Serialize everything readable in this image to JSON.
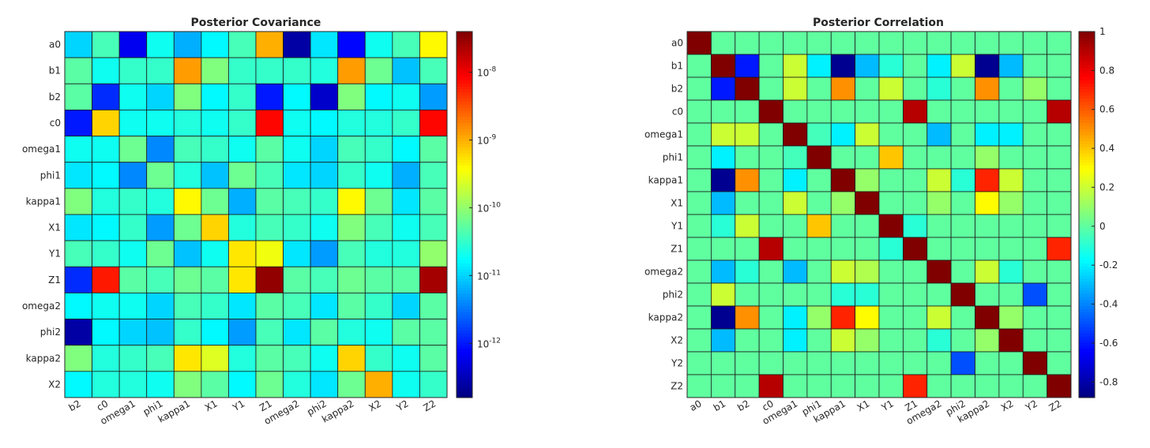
{
  "chart_data": [
    {
      "type": "heatmap",
      "title": "Posterior Covariance",
      "scale": "log10",
      "row_labels": [
        "a0",
        "b1",
        "b2",
        "c0",
        "omega1",
        "phi1",
        "kappa1",
        "X1",
        "Y1",
        "Z1",
        "omega2",
        "phi2",
        "kappa2",
        "X2"
      ],
      "col_labels": [
        "b2",
        "c0",
        "omega1",
        "phi1",
        "kappa1",
        "X1",
        "Y1",
        "Z1",
        "omega2",
        "phi2",
        "kappa2",
        "X2",
        "Y2",
        "Z2"
      ],
      "log10_values": [
        [
          -11.0,
          -10.4,
          -12.2,
          -10.7,
          -11.2,
          -10.8,
          -10.4,
          -9.0,
          -12.6,
          -10.9,
          -12.1,
          -10.7,
          -10.4,
          -9.4
        ],
        [
          -10.3,
          -10.7,
          -10.5,
          -10.5,
          -8.9,
          -10.1,
          -10.5,
          -10.5,
          -10.5,
          -10.6,
          -8.9,
          -10.2,
          -11.1,
          -10.4
        ],
        [
          -10.3,
          -11.9,
          -10.7,
          -11.0,
          -10.1,
          -10.8,
          -10.5,
          -12.0,
          -10.8,
          -12.4,
          -10.1,
          -10.8,
          -10.7,
          -11.3
        ],
        [
          -12.0,
          -9.2,
          -10.7,
          -10.7,
          -10.6,
          -10.7,
          -10.5,
          -8.1,
          -10.7,
          -10.8,
          -10.6,
          -10.6,
          -10.5,
          -8.1
        ],
        [
          -10.7,
          -10.7,
          -10.2,
          -11.4,
          -10.4,
          -10.5,
          -10.7,
          -10.3,
          -10.7,
          -11.0,
          -10.4,
          -10.5,
          -10.8,
          -10.3
        ],
        [
          -10.9,
          -10.8,
          -11.4,
          -10.2,
          -10.6,
          -11.1,
          -10.2,
          -10.4,
          -10.9,
          -11.0,
          -10.5,
          -10.7,
          -11.2,
          -10.4
        ],
        [
          -10.1,
          -10.6,
          -10.5,
          -10.6,
          -9.4,
          -10.2,
          -11.2,
          -10.3,
          -10.4,
          -10.5,
          -9.4,
          -10.2,
          -10.9,
          -10.3
        ],
        [
          -10.9,
          -10.8,
          -10.5,
          -11.3,
          -10.2,
          -9.2,
          -10.6,
          -10.4,
          -10.5,
          -10.7,
          -10.1,
          -10.4,
          -10.7,
          -10.4
        ],
        [
          -10.4,
          -10.5,
          -10.7,
          -10.2,
          -11.1,
          -10.7,
          -9.3,
          -9.5,
          -10.9,
          -11.3,
          -10.4,
          -10.6,
          -10.6,
          -10.0
        ],
        [
          -11.9,
          -8.2,
          -10.3,
          -10.4,
          -10.2,
          -10.3,
          -9.3,
          -7.5,
          -10.3,
          -10.4,
          -10.2,
          -10.3,
          -10.3,
          -7.6
        ],
        [
          -10.8,
          -10.7,
          -10.7,
          -11.0,
          -10.4,
          -10.5,
          -10.9,
          -10.3,
          -10.4,
          -10.9,
          -10.3,
          -10.5,
          -11.0,
          -10.3
        ],
        [
          -12.6,
          -10.8,
          -11.0,
          -11.1,
          -10.5,
          -10.8,
          -11.3,
          -10.4,
          -10.9,
          -10.3,
          -10.6,
          -10.7,
          -10.3,
          -10.3
        ],
        [
          -10.1,
          -10.6,
          -10.5,
          -10.4,
          -9.3,
          -9.6,
          -10.6,
          -10.3,
          -10.4,
          -10.7,
          -9.2,
          -10.5,
          -10.7,
          -10.3
        ],
        [
          -10.8,
          -10.6,
          -10.6,
          -10.7,
          -10.1,
          -10.3,
          -10.8,
          -10.2,
          -10.6,
          -10.9,
          -10.2,
          -9.0,
          -10.7,
          -10.5
        ]
      ],
      "colorbar": {
        "min_log10": -12.8,
        "max_log10": -7.4,
        "ticks": [
          {
            "log10": -8,
            "base": "10",
            "exp": "-8"
          },
          {
            "log10": -9,
            "base": "10",
            "exp": "-9"
          },
          {
            "log10": -10,
            "base": "10",
            "exp": "-10"
          },
          {
            "log10": -11,
            "base": "10",
            "exp": "-11"
          },
          {
            "log10": -12,
            "base": "10",
            "exp": "-12"
          }
        ]
      }
    },
    {
      "type": "heatmap",
      "title": "Posterior Correlation",
      "scale": "linear",
      "row_labels": [
        "a0",
        "b1",
        "b2",
        "c0",
        "omega1",
        "phi1",
        "kappa1",
        "X1",
        "Y1",
        "Z1",
        "omega2",
        "phi2",
        "kappa2",
        "X2",
        "Y2",
        "Z2"
      ],
      "col_labels": [
        "a0",
        "b1",
        "b2",
        "c0",
        "omega1",
        "phi1",
        "kappa1",
        "X1",
        "Y1",
        "Z1",
        "omega2",
        "phi2",
        "kappa2",
        "X2",
        "Y2",
        "Z2"
      ],
      "values": [
        [
          1.0,
          0.0,
          0.0,
          0.0,
          0.0,
          0.0,
          0.0,
          0.0,
          0.0,
          0.0,
          0.0,
          0.0,
          0.0,
          0.0,
          0.0,
          0.0
        ],
        [
          0.0,
          1.0,
          -0.6,
          0.0,
          0.2,
          -0.2,
          -0.85,
          -0.3,
          -0.1,
          0.0,
          -0.2,
          0.2,
          -0.85,
          -0.3,
          0.0,
          0.0
        ],
        [
          0.0,
          -0.6,
          1.0,
          0.0,
          0.2,
          0.0,
          0.5,
          0.0,
          0.2,
          0.0,
          -0.1,
          0.0,
          0.5,
          0.0,
          0.1,
          0.0
        ],
        [
          0.0,
          0.0,
          0.0,
          1.0,
          0.0,
          0.0,
          0.0,
          0.0,
          0.0,
          0.9,
          0.0,
          0.0,
          0.0,
          0.0,
          0.0,
          0.9
        ],
        [
          0.0,
          0.2,
          0.2,
          0.0,
          1.0,
          -0.05,
          -0.2,
          0.2,
          0.0,
          0.0,
          -0.3,
          0.0,
          -0.2,
          -0.2,
          0.0,
          0.0
        ],
        [
          0.0,
          -0.2,
          0.0,
          0.0,
          -0.05,
          1.0,
          0.0,
          0.0,
          0.4,
          0.0,
          0.0,
          0.0,
          0.1,
          0.0,
          0.0,
          0.0
        ],
        [
          0.0,
          -0.85,
          0.5,
          0.0,
          -0.2,
          0.0,
          1.0,
          0.1,
          0.0,
          0.0,
          0.2,
          -0.1,
          0.7,
          0.2,
          0.0,
          0.0
        ],
        [
          0.0,
          -0.3,
          0.0,
          0.0,
          0.2,
          0.0,
          0.1,
          1.0,
          0.0,
          0.0,
          0.1,
          0.0,
          0.3,
          0.1,
          0.0,
          0.0
        ],
        [
          0.0,
          -0.1,
          0.2,
          0.0,
          0.0,
          0.4,
          0.0,
          0.0,
          1.0,
          -0.1,
          0.0,
          0.0,
          0.0,
          0.0,
          0.0,
          0.0
        ],
        [
          0.0,
          0.0,
          0.0,
          0.9,
          0.0,
          0.0,
          0.0,
          0.0,
          -0.1,
          1.0,
          0.0,
          0.0,
          0.0,
          0.0,
          0.0,
          0.7
        ],
        [
          0.0,
          -0.3,
          -0.1,
          0.0,
          -0.3,
          0.0,
          0.2,
          0.15,
          0.0,
          0.0,
          1.0,
          0.0,
          0.2,
          -0.1,
          0.0,
          0.0
        ],
        [
          0.0,
          0.2,
          0.0,
          0.0,
          0.0,
          0.0,
          -0.1,
          -0.1,
          0.0,
          0.0,
          0.0,
          1.0,
          0.0,
          0.0,
          -0.5,
          0.0
        ],
        [
          0.0,
          -0.85,
          0.5,
          0.0,
          -0.2,
          0.1,
          0.7,
          0.3,
          0.0,
          0.0,
          0.2,
          0.0,
          1.0,
          0.1,
          0.0,
          0.0
        ],
        [
          0.0,
          -0.3,
          0.0,
          0.0,
          -0.2,
          0.0,
          0.2,
          0.1,
          0.0,
          0.0,
          -0.1,
          0.0,
          0.1,
          1.0,
          0.0,
          0.0
        ],
        [
          0.0,
          0.0,
          0.0,
          0.0,
          0.0,
          0.0,
          0.0,
          0.0,
          0.0,
          0.0,
          0.0,
          -0.5,
          0.0,
          0.0,
          1.0,
          0.0
        ],
        [
          0.0,
          0.0,
          0.0,
          0.9,
          0.0,
          0.0,
          0.0,
          0.0,
          0.0,
          0.7,
          0.0,
          0.0,
          0.0,
          0.0,
          0.0,
          1.0
        ]
      ],
      "colorbar": {
        "min": -0.88,
        "max": 1.0,
        "ticks": [
          "1",
          "0.8",
          "0.6",
          "0.4",
          "0.2",
          "0",
          "-0.2",
          "-0.4",
          "-0.6",
          "-0.8"
        ],
        "tick_values": [
          1,
          0.8,
          0.6,
          0.4,
          0.2,
          0,
          -0.2,
          -0.4,
          -0.6,
          -0.8
        ]
      }
    }
  ]
}
